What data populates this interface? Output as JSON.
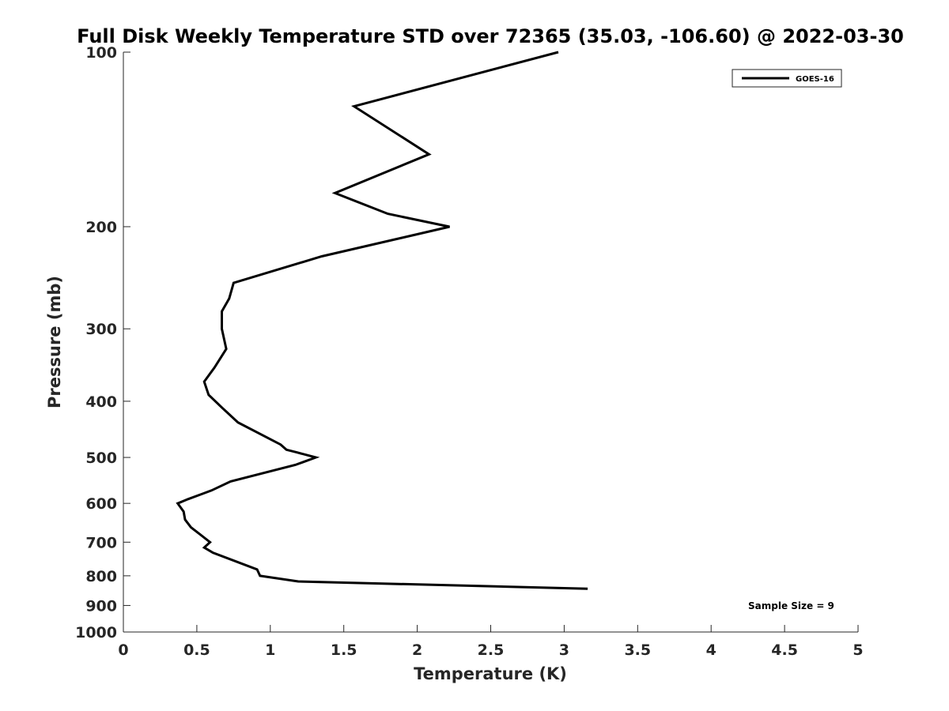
{
  "chart_data": {
    "type": "line",
    "title": "Full Disk Weekly Temperature STD over 72365 (35.03, -106.60) @ 2022-03-30",
    "xlabel": "Temperature (K)",
    "ylabel": "Pressure (mb)",
    "xlim": [
      0,
      5
    ],
    "ylim": [
      100,
      1000
    ],
    "y_scale": "log",
    "y_reversed": true,
    "x_ticks": [
      "0",
      "0.5",
      "1",
      "1.5",
      "2",
      "2.5",
      "3",
      "3.5",
      "4",
      "4.5",
      "5"
    ],
    "y_ticks": [
      "100",
      "200",
      "300",
      "400",
      "500",
      "600",
      "700",
      "800",
      "900",
      "1000"
    ],
    "grid": false,
    "legend_position": "top-right",
    "annotation": "Sample Size = 9",
    "series": [
      {
        "name": "GOES-16",
        "color": "#000000",
        "points": [
          {
            "x": 2.96,
            "p": 100
          },
          {
            "x": 1.57,
            "p": 124
          },
          {
            "x": 2.08,
            "p": 150
          },
          {
            "x": 1.44,
            "p": 175
          },
          {
            "x": 1.8,
            "p": 190
          },
          {
            "x": 2.22,
            "p": 200
          },
          {
            "x": 1.35,
            "p": 225
          },
          {
            "x": 0.75,
            "p": 250
          },
          {
            "x": 0.72,
            "p": 266
          },
          {
            "x": 0.67,
            "p": 280
          },
          {
            "x": 0.67,
            "p": 300
          },
          {
            "x": 0.7,
            "p": 325
          },
          {
            "x": 0.62,
            "p": 350
          },
          {
            "x": 0.55,
            "p": 370
          },
          {
            "x": 0.58,
            "p": 390
          },
          {
            "x": 0.67,
            "p": 410
          },
          {
            "x": 0.78,
            "p": 435
          },
          {
            "x": 1.07,
            "p": 475
          },
          {
            "x": 1.11,
            "p": 485
          },
          {
            "x": 1.18,
            "p": 490
          },
          {
            "x": 1.31,
            "p": 500
          },
          {
            "x": 1.17,
            "p": 515
          },
          {
            "x": 0.73,
            "p": 550
          },
          {
            "x": 0.6,
            "p": 570
          },
          {
            "x": 0.44,
            "p": 590
          },
          {
            "x": 0.37,
            "p": 600
          },
          {
            "x": 0.41,
            "p": 620
          },
          {
            "x": 0.42,
            "p": 640
          },
          {
            "x": 0.46,
            "p": 660
          },
          {
            "x": 0.59,
            "p": 700
          },
          {
            "x": 0.55,
            "p": 715
          },
          {
            "x": 0.61,
            "p": 730
          },
          {
            "x": 0.91,
            "p": 780
          },
          {
            "x": 0.93,
            "p": 800
          },
          {
            "x": 1.19,
            "p": 818
          },
          {
            "x": 3.16,
            "p": 842
          }
        ]
      }
    ]
  }
}
